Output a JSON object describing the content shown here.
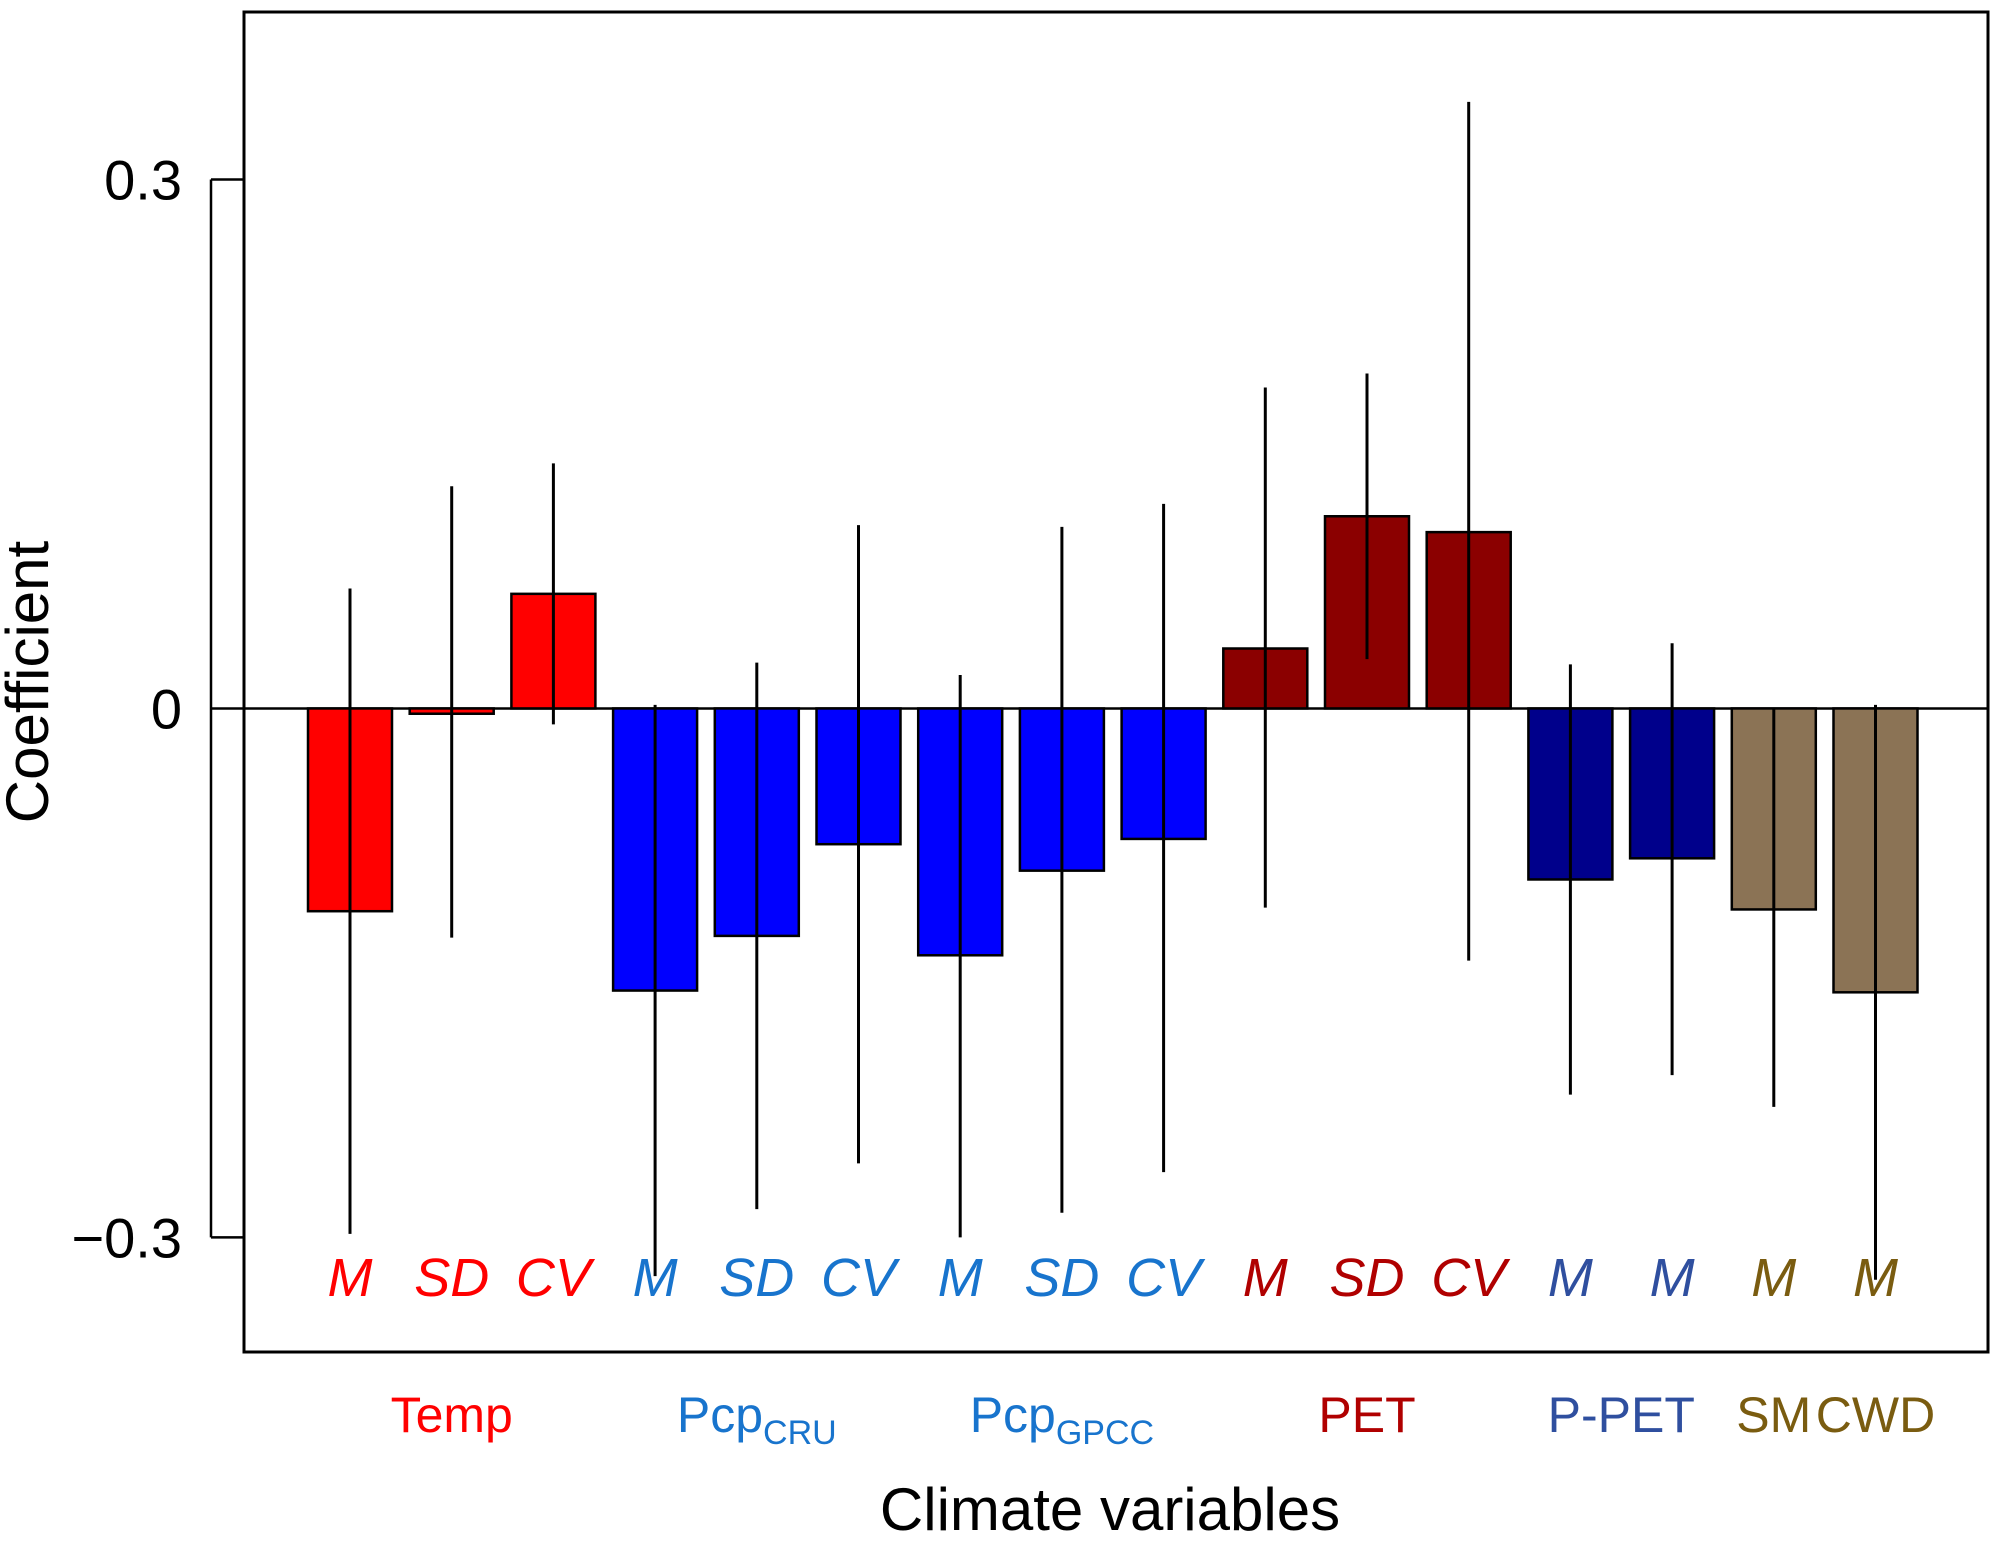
{
  "colors": {
    "temp": "#ff0000",
    "pcp": "#0000ff",
    "pet": "#8b0000",
    "ppet": "#00008b",
    "soil": "#8b7355",
    "label_temp": "#ff0000",
    "label_pcp": "#1874cd",
    "label_pet": "#b00000",
    "label_ppet": "#2f4f9f",
    "label_soil": "#7a5c10"
  },
  "chart_data": {
    "type": "bar",
    "title": "",
    "xlabel": "Climate variables",
    "ylabel": "Coefficient",
    "ylim": [
      -0.365,
      0.395
    ],
    "yticks": [
      {
        "value": 0.3,
        "label": "0.3"
      },
      {
        "value": 0,
        "label": "0"
      },
      {
        "value": -0.3,
        "label": "−0.3"
      }
    ],
    "bars": [
      {
        "stat": "M",
        "group": "temp",
        "value": -0.115,
        "lower": -0.298,
        "upper": 0.068
      },
      {
        "stat": "SD",
        "group": "temp",
        "value": -0.003,
        "lower": -0.13,
        "upper": 0.126
      },
      {
        "stat": "CV",
        "group": "temp",
        "value": 0.065,
        "lower": -0.009,
        "upper": 0.139
      },
      {
        "stat": "M",
        "group": "pcp",
        "value": -0.16,
        "lower": -0.322,
        "upper": 0.002
      },
      {
        "stat": "SD",
        "group": "pcp",
        "value": -0.129,
        "lower": -0.284,
        "upper": 0.026
      },
      {
        "stat": "CV",
        "group": "pcp",
        "value": -0.077,
        "lower": -0.258,
        "upper": 0.104
      },
      {
        "stat": "M",
        "group": "pcp",
        "value": -0.14,
        "lower": -0.3,
        "upper": 0.019
      },
      {
        "stat": "SD",
        "group": "pcp",
        "value": -0.092,
        "lower": -0.286,
        "upper": 0.103
      },
      {
        "stat": "CV",
        "group": "pcp",
        "value": -0.074,
        "lower": -0.263,
        "upper": 0.116
      },
      {
        "stat": "M",
        "group": "pet",
        "value": 0.034,
        "lower": -0.113,
        "upper": 0.182
      },
      {
        "stat": "SD",
        "group": "pet",
        "value": 0.109,
        "lower": 0.028,
        "upper": 0.19
      },
      {
        "stat": "CV",
        "group": "pet",
        "value": 0.1,
        "lower": -0.143,
        "upper": 0.344
      },
      {
        "stat": "M",
        "group": "ppet",
        "value": -0.097,
        "lower": -0.219,
        "upper": 0.025
      },
      {
        "stat": "M",
        "group": "ppet",
        "value": -0.085,
        "lower": -0.208,
        "upper": 0.037
      },
      {
        "stat": "M",
        "group": "soil",
        "value": -0.114,
        "lower": -0.226,
        "upper": 0.0
      },
      {
        "stat": "M",
        "group": "soil",
        "value": -0.161,
        "lower": -0.324,
        "upper": 0.002
      }
    ],
    "groups": [
      {
        "key": "temp",
        "label": "Temp",
        "sub": "",
        "bars": [
          0,
          2
        ]
      },
      {
        "key": "pcp",
        "label": "Pcp",
        "sub": "CRU",
        "bars": [
          3,
          5
        ]
      },
      {
        "key": "pcp",
        "label": "Pcp",
        "sub": "GPCC",
        "bars": [
          6,
          8
        ]
      },
      {
        "key": "pet",
        "label": "PET",
        "sub": "",
        "bars": [
          9,
          11
        ]
      },
      {
        "key": "ppet",
        "label": "P-PET",
        "sub": "",
        "bars": [
          12,
          13
        ]
      },
      {
        "key": "soil",
        "label": "SM",
        "sub": "",
        "bars": [
          14,
          14
        ]
      },
      {
        "key": "soil",
        "label": "CWD",
        "sub": "",
        "bars": [
          15,
          15
        ]
      }
    ]
  }
}
